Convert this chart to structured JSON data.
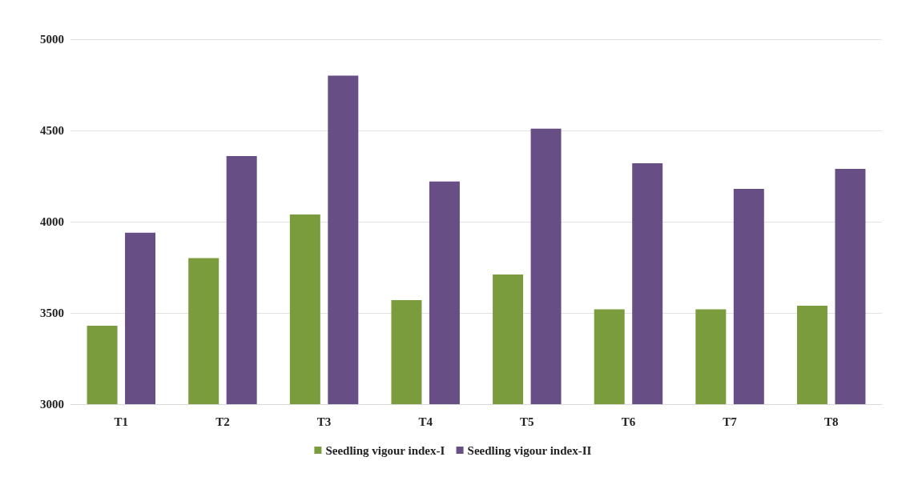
{
  "chart_data": {
    "type": "bar",
    "categories": [
      "T1",
      "T2",
      "T3",
      "T4",
      "T5",
      "T6",
      "T7",
      "T8"
    ],
    "series": [
      {
        "name": "Seedling vigour index-I",
        "color": "#7a9c3c",
        "values": [
          3430,
          3800,
          4040,
          3570,
          3710,
          3520,
          3520,
          3540
        ]
      },
      {
        "name": "Seedling vigour index-II",
        "color": "#674f86",
        "values": [
          3940,
          4360,
          4800,
          4220,
          4510,
          4320,
          4180,
          4290
        ]
      }
    ],
    "ylim": [
      3000,
      5000
    ],
    "yticks": [
      3000,
      3500,
      4000,
      4500,
      5000
    ],
    "grid": "y",
    "legend": "bottom"
  }
}
